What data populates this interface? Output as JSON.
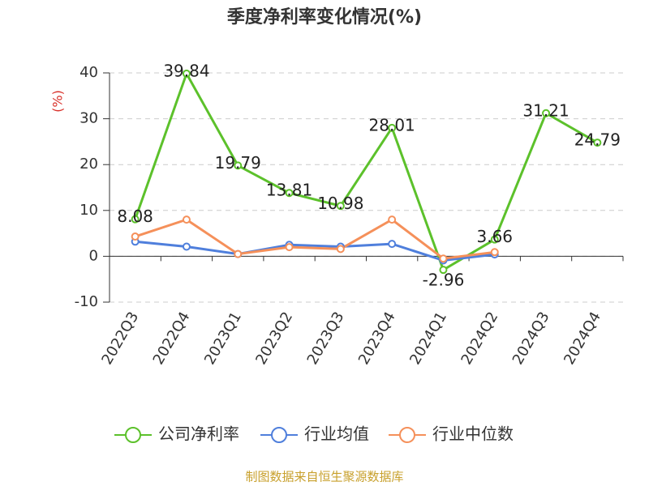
{
  "chart_data": {
    "type": "line",
    "title": "季度净利率变化情况(%)",
    "y_label": "(%)",
    "categories": [
      "2022Q3",
      "2022Q4",
      "2023Q1",
      "2023Q2",
      "2023Q3",
      "2023Q4",
      "2024Q1",
      "2024Q2",
      "2024Q3",
      "2024Q4"
    ],
    "series": [
      {
        "name": "公司净利率",
        "color": "#5cc12b",
        "values": [
          8.08,
          39.84,
          19.79,
          13.81,
          10.98,
          28.01,
          -2.96,
          3.66,
          31.21,
          24.79
        ]
      },
      {
        "name": "行业均值",
        "color": "#4f7fdc",
        "values": [
          3.2,
          2.1,
          0.5,
          2.5,
          2.1,
          2.7,
          -0.9,
          0.4,
          null,
          null
        ]
      },
      {
        "name": "行业中位数",
        "color": "#f5905a",
        "values": [
          4.3,
          8.0,
          0.5,
          2.0,
          1.6,
          8.0,
          -0.5,
          0.9,
          null,
          null
        ]
      }
    ],
    "ylim": [
      -10,
      40
    ],
    "yticks": [
      -10,
      0,
      10,
      20,
      30,
      40
    ],
    "grid": true,
    "legend": "bottom",
    "source": "制图数据来自恒生聚源数据库"
  }
}
